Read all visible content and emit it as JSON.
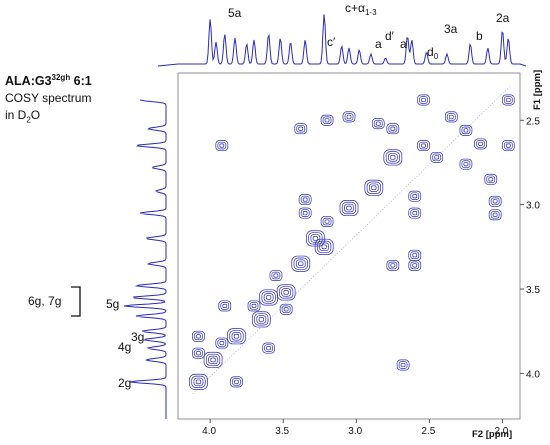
{
  "figure": {
    "sample_name": "ALA:G3",
    "sample_sup": "32gh",
    "sample_ratio": " 6:1",
    "method_line1": "COSY spectrum",
    "method_line2": "in D",
    "method_sub": "2",
    "method_line2_end": "O",
    "top_peak_labels": [
      "5a",
      "c+α",
      "1-3",
      "c′",
      "a",
      "d′",
      "a",
      "d",
      "0",
      "3a",
      "b",
      "2a"
    ],
    "left_peak_labels": [
      "6g, 7g",
      "5g",
      "3g",
      "4g",
      "2g"
    ],
    "x_axis_label": "F2 [ppm]",
    "y_axis_label": "F1 [ppm]",
    "line_color": "#2b2bb8"
  },
  "chart_data": {
    "type": "heatmap",
    "x_axis": {
      "label": "F2 [ppm]",
      "reversed": true,
      "range": [
        4.22,
        1.88
      ],
      "ticks": [
        "4.0",
        "3.5",
        "3.0",
        "2.5",
        "2.0"
      ],
      "tick_values": [
        4.0,
        3.5,
        3.0,
        2.5,
        2.0
      ]
    },
    "y_axis": {
      "label": "F1 [ppm]",
      "range": [
        2.22,
        4.27
      ],
      "ticks": [
        "2.5",
        "3.0",
        "3.5",
        "4.0"
      ],
      "tick_values": [
        2.5,
        3.0,
        3.5,
        4.0
      ]
    },
    "cross_peaks": [
      {
        "x": 2.54,
        "y": 2.38
      },
      {
        "x": 1.96,
        "y": 2.38
      },
      {
        "x": 2.54,
        "y": 2.65
      },
      {
        "x": 1.96,
        "y": 2.65
      },
      {
        "x": 2.35,
        "y": 2.48
      },
      {
        "x": 2.25,
        "y": 2.56
      },
      {
        "x": 2.15,
        "y": 2.64
      },
      {
        "x": 2.45,
        "y": 2.72
      },
      {
        "x": 2.25,
        "y": 2.76
      },
      {
        "x": 2.08,
        "y": 2.85
      },
      {
        "x": 3.2,
        "y": 2.5
      },
      {
        "x": 3.05,
        "y": 2.48
      },
      {
        "x": 2.85,
        "y": 2.52
      },
      {
        "x": 2.75,
        "y": 2.55
      },
      {
        "x": 3.38,
        "y": 2.55
      },
      {
        "x": 3.92,
        "y": 2.65
      },
      {
        "x": 2.75,
        "y": 2.72
      },
      {
        "x": 2.6,
        "y": 2.95
      },
      {
        "x": 2.05,
        "y": 2.98
      },
      {
        "x": 2.6,
        "y": 3.05
      },
      {
        "x": 2.05,
        "y": 3.06
      },
      {
        "x": 2.88,
        "y": 2.9
      },
      {
        "x": 3.05,
        "y": 3.02
      },
      {
        "x": 3.2,
        "y": 3.1
      },
      {
        "x": 3.35,
        "y": 2.97
      },
      {
        "x": 3.35,
        "y": 3.05
      },
      {
        "x": 3.28,
        "y": 3.2
      },
      {
        "x": 3.38,
        "y": 3.35
      },
      {
        "x": 3.22,
        "y": 3.25
      },
      {
        "x": 2.6,
        "y": 3.3
      },
      {
        "x": 2.6,
        "y": 3.36
      },
      {
        "x": 2.75,
        "y": 3.36
      },
      {
        "x": 3.55,
        "y": 3.42
      },
      {
        "x": 3.48,
        "y": 3.52
      },
      {
        "x": 3.6,
        "y": 3.55
      },
      {
        "x": 3.48,
        "y": 3.62
      },
      {
        "x": 3.7,
        "y": 3.6
      },
      {
        "x": 3.9,
        "y": 3.6
      },
      {
        "x": 3.65,
        "y": 3.68
      },
      {
        "x": 4.08,
        "y": 3.78
      },
      {
        "x": 3.82,
        "y": 3.78
      },
      {
        "x": 3.92,
        "y": 3.82
      },
      {
        "x": 3.6,
        "y": 3.85
      },
      {
        "x": 4.08,
        "y": 3.88
      },
      {
        "x": 3.98,
        "y": 3.92
      },
      {
        "x": 2.68,
        "y": 3.95
      },
      {
        "x": 4.08,
        "y": 4.05
      },
      {
        "x": 3.82,
        "y": 4.05
      }
    ]
  }
}
